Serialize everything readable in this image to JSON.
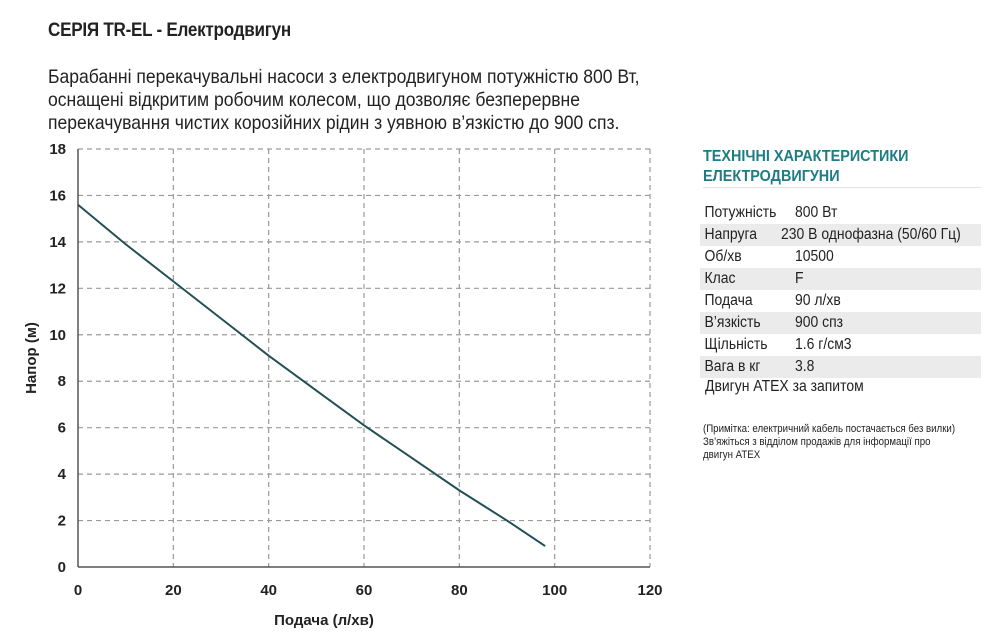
{
  "header": {
    "title": "СЕРІЯ TR-EL - Електродвигун",
    "description_lines": [
      "Барабанні перекачувальні насоси з електродвигуном потужністю 800 Вт,",
      "оснащені відкритим робочим колесом, що дозволяє безперервне",
      "перекачування чистих корозійних рідин з уявною в’язкістю до 900 спз."
    ]
  },
  "specs": {
    "heading_line1": "ТЕХНІЧНІ ХАРАКТЕРИСТИКИ",
    "heading_line2": "ЕЛЕКТРОДВИГУНИ",
    "rows": [
      {
        "label": "Потужність",
        "value": "800 Вт"
      },
      {
        "label": "Напруга",
        "value": "230 В однофазна (50/60 Гц)"
      },
      {
        "label": "Об/хв",
        "value": "10500"
      },
      {
        "label": "Клас",
        "value": "F"
      },
      {
        "label": "Подача",
        "value": "90 л/хв"
      },
      {
        "label": "В’язкість",
        "value": "900 спз"
      },
      {
        "label": "Щільність",
        "value": "1.6 г/см3"
      },
      {
        "label": "Вага в кг",
        "value": "3.8"
      }
    ],
    "atex": "Двигун ATEX за запитом",
    "note_lines": [
      "(Примітка: електричний кабель постачається без вилки)",
      "Зв’яжіться з відділом продажів для інформації про",
      "двигун ATEX"
    ],
    "heading_color": "#1e7c83",
    "row_shade_color": "#ebebeb"
  },
  "chart_data": {
    "type": "line",
    "title": "",
    "xlabel": "Подача (л/хв)",
    "ylabel": "Напор (м)",
    "xlim": [
      0,
      120
    ],
    "ylim": [
      0,
      18
    ],
    "xticks": [
      0,
      20,
      40,
      60,
      80,
      100,
      120
    ],
    "yticks": [
      0,
      2,
      4,
      6,
      8,
      10,
      12,
      14,
      16,
      18
    ],
    "grid": true,
    "grid_style": "dashed",
    "line_color": "#234f55",
    "series": [
      {
        "x": [
          0,
          10,
          20,
          30,
          40,
          50,
          60,
          70,
          80,
          90,
          98
        ],
        "y": [
          15.6,
          13.9,
          12.3,
          10.7,
          9.1,
          7.6,
          6.1,
          4.7,
          3.3,
          2.0,
          0.9
        ]
      }
    ]
  }
}
